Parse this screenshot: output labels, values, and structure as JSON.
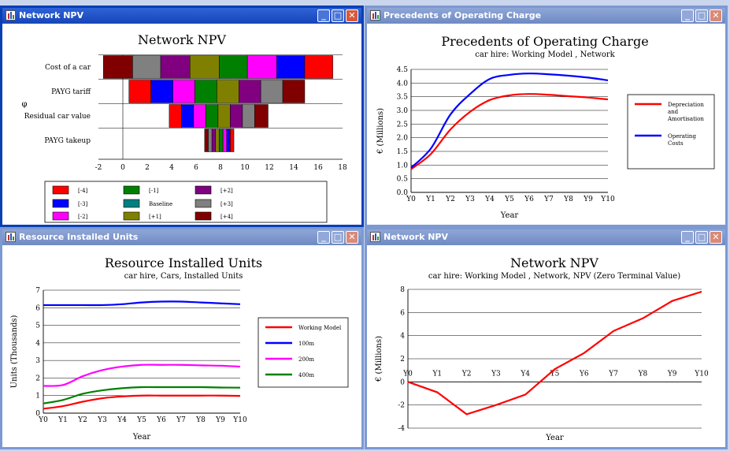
{
  "windows": {
    "w1": {
      "title": "Network NPV",
      "chart_data": {
        "type": "bar",
        "title": "Network NPV",
        "ylabel": "φ",
        "categories": [
          "Cost of a car",
          "PAYG tariff",
          "Residual car value",
          "PAYG takeup"
        ],
        "xlim": [
          -2,
          18
        ],
        "xticks": [
          "-2",
          "0",
          "2",
          "4",
          "6",
          "8",
          "10",
          "12",
          "14",
          "16",
          "18"
        ],
        "xtick_values": [
          -2,
          0,
          2,
          4,
          6,
          8,
          10,
          12,
          14,
          16,
          18
        ],
        "segments": [
          [
            "-4",
            "-3",
            "-2",
            "-1",
            "Baseline",
            "+1",
            "+2",
            "+3",
            "+4"
          ]
        ],
        "bars": [
          {
            "category": "Cost of a car",
            "edges": [
              -1.6,
              0.8,
              3.1,
              5.5,
              7.9,
              10.2,
              12.6,
              14.9,
              17.2
            ]
          },
          {
            "category": "PAYG tariff",
            "edges": [
              0.5,
              2.3,
              4.1,
              5.9,
              7.7,
              9.5,
              11.3,
              13.1,
              14.9
            ]
          },
          {
            "category": "Residual car value",
            "edges": [
              3.8,
              4.8,
              5.8,
              6.8,
              7.8,
              8.8,
              9.8,
              10.8,
              11.9
            ]
          },
          {
            "category": "PAYG takeup",
            "edges": [
              6.7,
              7.0,
              7.3,
              7.6,
              7.9,
              8.2,
              8.5,
              8.8,
              9.1
            ]
          }
        ],
        "legend": [
          {
            "label": "[-4]",
            "color": "#ff0000"
          },
          {
            "label": "[-3]",
            "color": "#0000ff"
          },
          {
            "label": "[-2]",
            "color": "#ff00ff"
          },
          {
            "label": "[-1]",
            "color": "#008000"
          },
          {
            "label": "Baseline",
            "color": "#008080"
          },
          {
            "label": "[+1]",
            "color": "#808000"
          },
          {
            "label": "[+2]",
            "color": "#800080"
          },
          {
            "label": "[+3]",
            "color": "#808080"
          },
          {
            "label": "[+4]",
            "color": "#800000"
          }
        ]
      }
    },
    "w2": {
      "title": "Precedents of Operating Charge",
      "chart_data": {
        "type": "line",
        "title": "Precedents of Operating Charge",
        "subtitle": "car hire:  Working Model , Network",
        "xlabel": "Year",
        "ylabel": "€ (Millions)",
        "categories": [
          "Y0",
          "Y1",
          "Y2",
          "Y3",
          "Y4",
          "Y5",
          "Y6",
          "Y7",
          "Y8",
          "Y9",
          "Y10"
        ],
        "ylim": [
          0,
          4.5
        ],
        "yticks": [
          "0.0",
          "0.5",
          "1.0",
          "1.5",
          "2.0",
          "2.5",
          "3.0",
          "3.5",
          "4.0",
          "4.5"
        ],
        "series": [
          {
            "name": "Depreciation and Amortisation",
            "color": "#ff0000",
            "values": [
              0.85,
              1.4,
              2.3,
              2.95,
              3.38,
              3.55,
              3.6,
              3.57,
              3.52,
              3.47,
              3.4
            ]
          },
          {
            "name": "Operating Costs",
            "color": "#0000ff",
            "values": [
              0.9,
              1.6,
              2.85,
              3.6,
              4.15,
              4.3,
              4.35,
              4.32,
              4.27,
              4.2,
              4.1
            ]
          }
        ],
        "legend_labels": [
          [
            "Depreciation",
            "and",
            "Amortisation"
          ],
          [
            "Operating",
            "Costs"
          ]
        ]
      }
    },
    "w3": {
      "title": "Resource Installed Units",
      "chart_data": {
        "type": "line",
        "title": "Resource Installed Units",
        "subtitle": "car hire, Cars, Installed Units",
        "xlabel": "Year",
        "ylabel": "Units (Thousands)",
        "categories": [
          "Y0",
          "Y1",
          "Y2",
          "Y3",
          "Y4",
          "Y5",
          "Y6",
          "Y7",
          "Y8",
          "Y9",
          "Y10"
        ],
        "ylim": [
          0,
          7
        ],
        "yticks": [
          "0",
          "1",
          "2",
          "3",
          "4",
          "5",
          "6",
          "7"
        ],
        "series": [
          {
            "name": "Working Model",
            "color": "#ff0000",
            "values": [
              0.25,
              0.4,
              0.65,
              0.85,
              0.95,
              1.0,
              1.0,
              1.0,
              1.0,
              1.0,
              0.98
            ]
          },
          {
            "name": "100m",
            "color": "#0000ff",
            "values": [
              6.15,
              6.15,
              6.15,
              6.15,
              6.2,
              6.3,
              6.35,
              6.35,
              6.3,
              6.25,
              6.2
            ]
          },
          {
            "name": "200m",
            "color": "#ff00ff",
            "values": [
              1.55,
              1.6,
              2.1,
              2.45,
              2.65,
              2.75,
              2.75,
              2.75,
              2.72,
              2.7,
              2.65
            ]
          },
          {
            "name": "400m",
            "color": "#008000",
            "values": [
              0.55,
              0.75,
              1.1,
              1.3,
              1.42,
              1.48,
              1.48,
              1.48,
              1.48,
              1.46,
              1.45
            ]
          }
        ]
      }
    },
    "w4": {
      "title": "Network NPV",
      "chart_data": {
        "type": "line",
        "title": "Network NPV",
        "subtitle": "car hire:  Working Model , Network, NPV (Zero Terminal Value)",
        "xlabel": "Year",
        "ylabel": "€ (Millions)",
        "categories": [
          "Y0",
          "Y1",
          "Y2",
          "Y3",
          "Y4",
          "Y5",
          "Y6",
          "Y7",
          "Y8",
          "Y9",
          "Y10"
        ],
        "ylim": [
          -4,
          8
        ],
        "yticks": [
          "-4",
          "-2",
          "0",
          "2",
          "4",
          "6",
          "8"
        ],
        "ytick_values": [
          -4,
          -2,
          0,
          2,
          4,
          6,
          8
        ],
        "series": [
          {
            "name": "Network NPV",
            "color": "#ff0000",
            "values": [
              0,
              -0.9,
              -2.8,
              -2.0,
              -1.1,
              1.1,
              2.5,
              4.4,
              5.5,
              7.0,
              7.8
            ]
          }
        ]
      }
    }
  }
}
